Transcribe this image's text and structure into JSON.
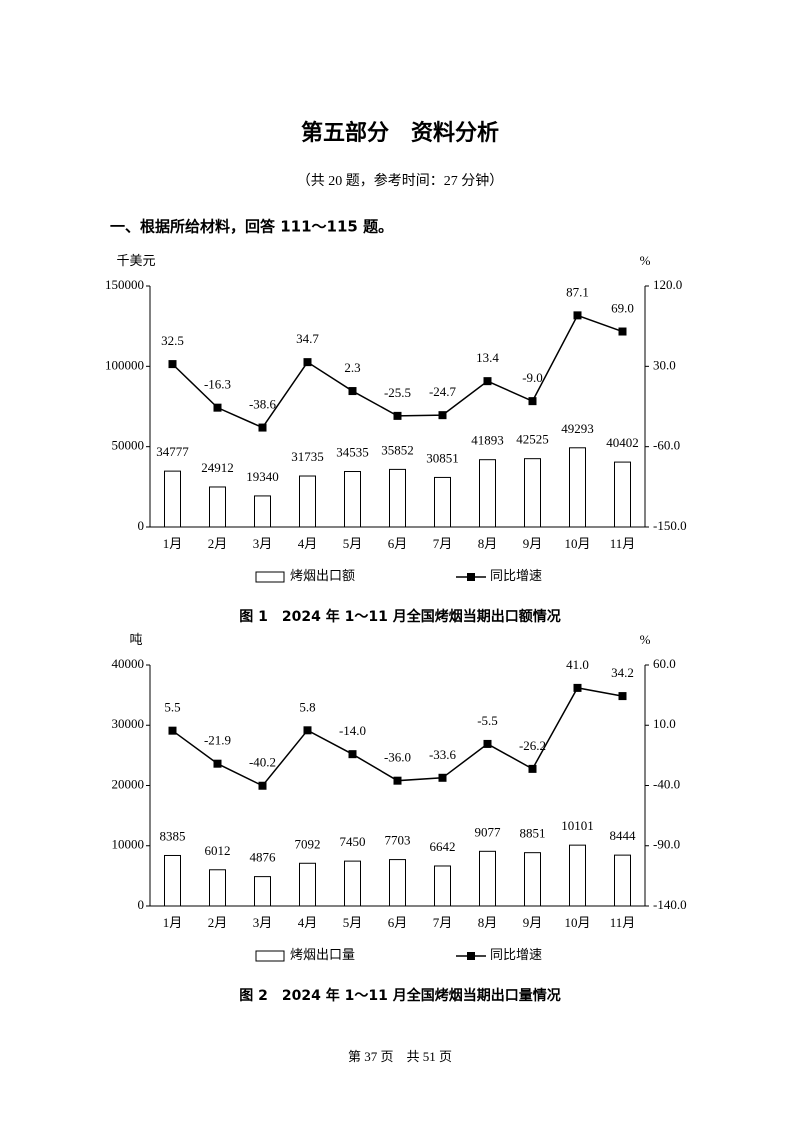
{
  "document": {
    "title": "第五部分　资料分析",
    "subtitle": "（共 20 题，参考时间：27 分钟）",
    "section": "一、根据所给材料，回答 111～115 题。",
    "footer": "第 37 页　共 51 页"
  },
  "chart_data": [
    {
      "type": "combo",
      "caption": "图 1　2024 年 1～11 月全国烤烟当期出口额情况",
      "y_label": "千美元",
      "y2_label": "%",
      "categories": [
        "1月",
        "2月",
        "3月",
        "4月",
        "5月",
        "6月",
        "7月",
        "8月",
        "9月",
        "10月",
        "11月"
      ],
      "ylim": [
        0,
        150000
      ],
      "yticks": [
        0,
        50000,
        100000,
        150000
      ],
      "y2lim": [
        -150,
        120
      ],
      "y2ticks": [
        {
          "value": -150,
          "label": "-150.0"
        },
        {
          "value": -60,
          "label": "-60.0"
        },
        {
          "value": 30,
          "label": "30.0"
        },
        {
          "value": 120,
          "label": "120.0"
        }
      ],
      "series": [
        {
          "name": "烤烟出口额",
          "kind": "bar",
          "color": "#ffffff",
          "values": [
            34777,
            24912,
            19340,
            31735,
            34535,
            35852,
            30851,
            41893,
            42525,
            49293,
            40402
          ]
        },
        {
          "name": "同比增速",
          "kind": "line",
          "axis": "y2",
          "color": "#000000",
          "values": [
            32.5,
            -16.3,
            -38.6,
            34.7,
            2.3,
            -25.5,
            -24.7,
            13.4,
            -9.0,
            87.1,
            69.0
          ],
          "value_labels": [
            "32.5",
            "-16.3",
            "-38.6",
            "34.7",
            "2.3",
            "-25.5",
            "-24.7",
            "13.4",
            "-9.0",
            "87.1",
            "69.0"
          ]
        }
      ]
    },
    {
      "type": "combo",
      "caption": "图 2　2024 年 1～11 月全国烤烟当期出口量情况",
      "y_label": "吨",
      "y2_label": "%",
      "categories": [
        "1月",
        "2月",
        "3月",
        "4月",
        "5月",
        "6月",
        "7月",
        "8月",
        "9月",
        "10月",
        "11月"
      ],
      "ylim": [
        0,
        40000
      ],
      "yticks": [
        0,
        10000,
        20000,
        30000,
        40000
      ],
      "y2lim": [
        -140,
        60
      ],
      "y2ticks": [
        {
          "value": -140,
          "label": "-140.0"
        },
        {
          "value": -90,
          "label": "-90.0"
        },
        {
          "value": -40,
          "label": "-40.0"
        },
        {
          "value": 10,
          "label": "10.0"
        },
        {
          "value": 60,
          "label": "60.0"
        }
      ],
      "series": [
        {
          "name": "烤烟出口量",
          "kind": "bar",
          "color": "#ffffff",
          "values": [
            8385,
            6012,
            4876,
            7092,
            7450,
            7703,
            6642,
            9077,
            8851,
            10101,
            8444
          ]
        },
        {
          "name": "同比增速",
          "kind": "line",
          "axis": "y2",
          "color": "#000000",
          "values": [
            5.5,
            -21.9,
            -40.2,
            5.8,
            -14.0,
            -36.0,
            -33.6,
            -5.5,
            -26.2,
            41.0,
            34.2
          ],
          "value_labels": [
            "5.5",
            "-21.9",
            "-40.2",
            "5.8",
            "-14.0",
            "-36.0",
            "-33.6",
            "-5.5",
            "-26.2",
            "41.0",
            "34.2"
          ]
        }
      ]
    }
  ]
}
